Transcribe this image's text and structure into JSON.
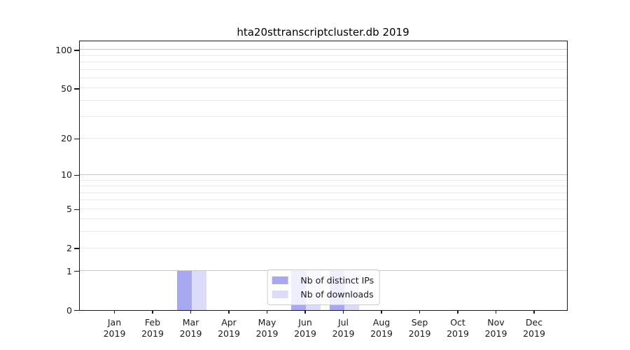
{
  "chart_data": {
    "type": "bar",
    "title": "hta20sttranscriptcluster.db 2019",
    "categories": [
      {
        "month": "Jan",
        "year": "2019"
      },
      {
        "month": "Feb",
        "year": "2019"
      },
      {
        "month": "Mar",
        "year": "2019"
      },
      {
        "month": "Apr",
        "year": "2019"
      },
      {
        "month": "May",
        "year": "2019"
      },
      {
        "month": "Jun",
        "year": "2019"
      },
      {
        "month": "Jul",
        "year": "2019"
      },
      {
        "month": "Aug",
        "year": "2019"
      },
      {
        "month": "Sep",
        "year": "2019"
      },
      {
        "month": "Oct",
        "year": "2019"
      },
      {
        "month": "Nov",
        "year": "2019"
      },
      {
        "month": "Dec",
        "year": "2019"
      }
    ],
    "series": [
      {
        "name": "Nb of distinct IPs",
        "color": "#a8a8f0",
        "values": [
          0,
          0,
          1,
          0,
          0,
          1,
          1,
          0,
          0,
          0,
          0,
          0
        ]
      },
      {
        "name": "Nb of downloads",
        "color": "#dcdcf8",
        "values": [
          0,
          0,
          1,
          0,
          0,
          1,
          1,
          0,
          0,
          0,
          0,
          0
        ]
      }
    ],
    "yaxis": {
      "scale": "log1p",
      "ylim": [
        0,
        119
      ],
      "ticks": [
        {
          "value": 100,
          "label": "100"
        },
        {
          "value": 50,
          "label": "50"
        },
        {
          "value": 20,
          "label": "20"
        },
        {
          "value": 10,
          "label": "10"
        },
        {
          "value": 5,
          "label": "5"
        },
        {
          "value": 2,
          "label": "2"
        },
        {
          "value": 1,
          "label": "1"
        },
        {
          "value": 0,
          "label": "0"
        }
      ],
      "major_gridlines": [
        100,
        10,
        1
      ],
      "minor_gridlines": [
        90,
        80,
        70,
        60,
        50,
        40,
        30,
        20,
        9,
        8,
        7,
        6,
        5,
        4,
        3,
        2
      ]
    },
    "grid": true,
    "legend": {
      "position": "bottom-center",
      "entries": [
        "Nb of distinct IPs",
        "Nb of downloads"
      ]
    }
  },
  "colors": {
    "axis": "#1a1a1a",
    "grid_major": "#c6c6c6",
    "grid_minor": "#e9e9e9",
    "legend_border": "#cccccc",
    "background": "#ffffff"
  }
}
